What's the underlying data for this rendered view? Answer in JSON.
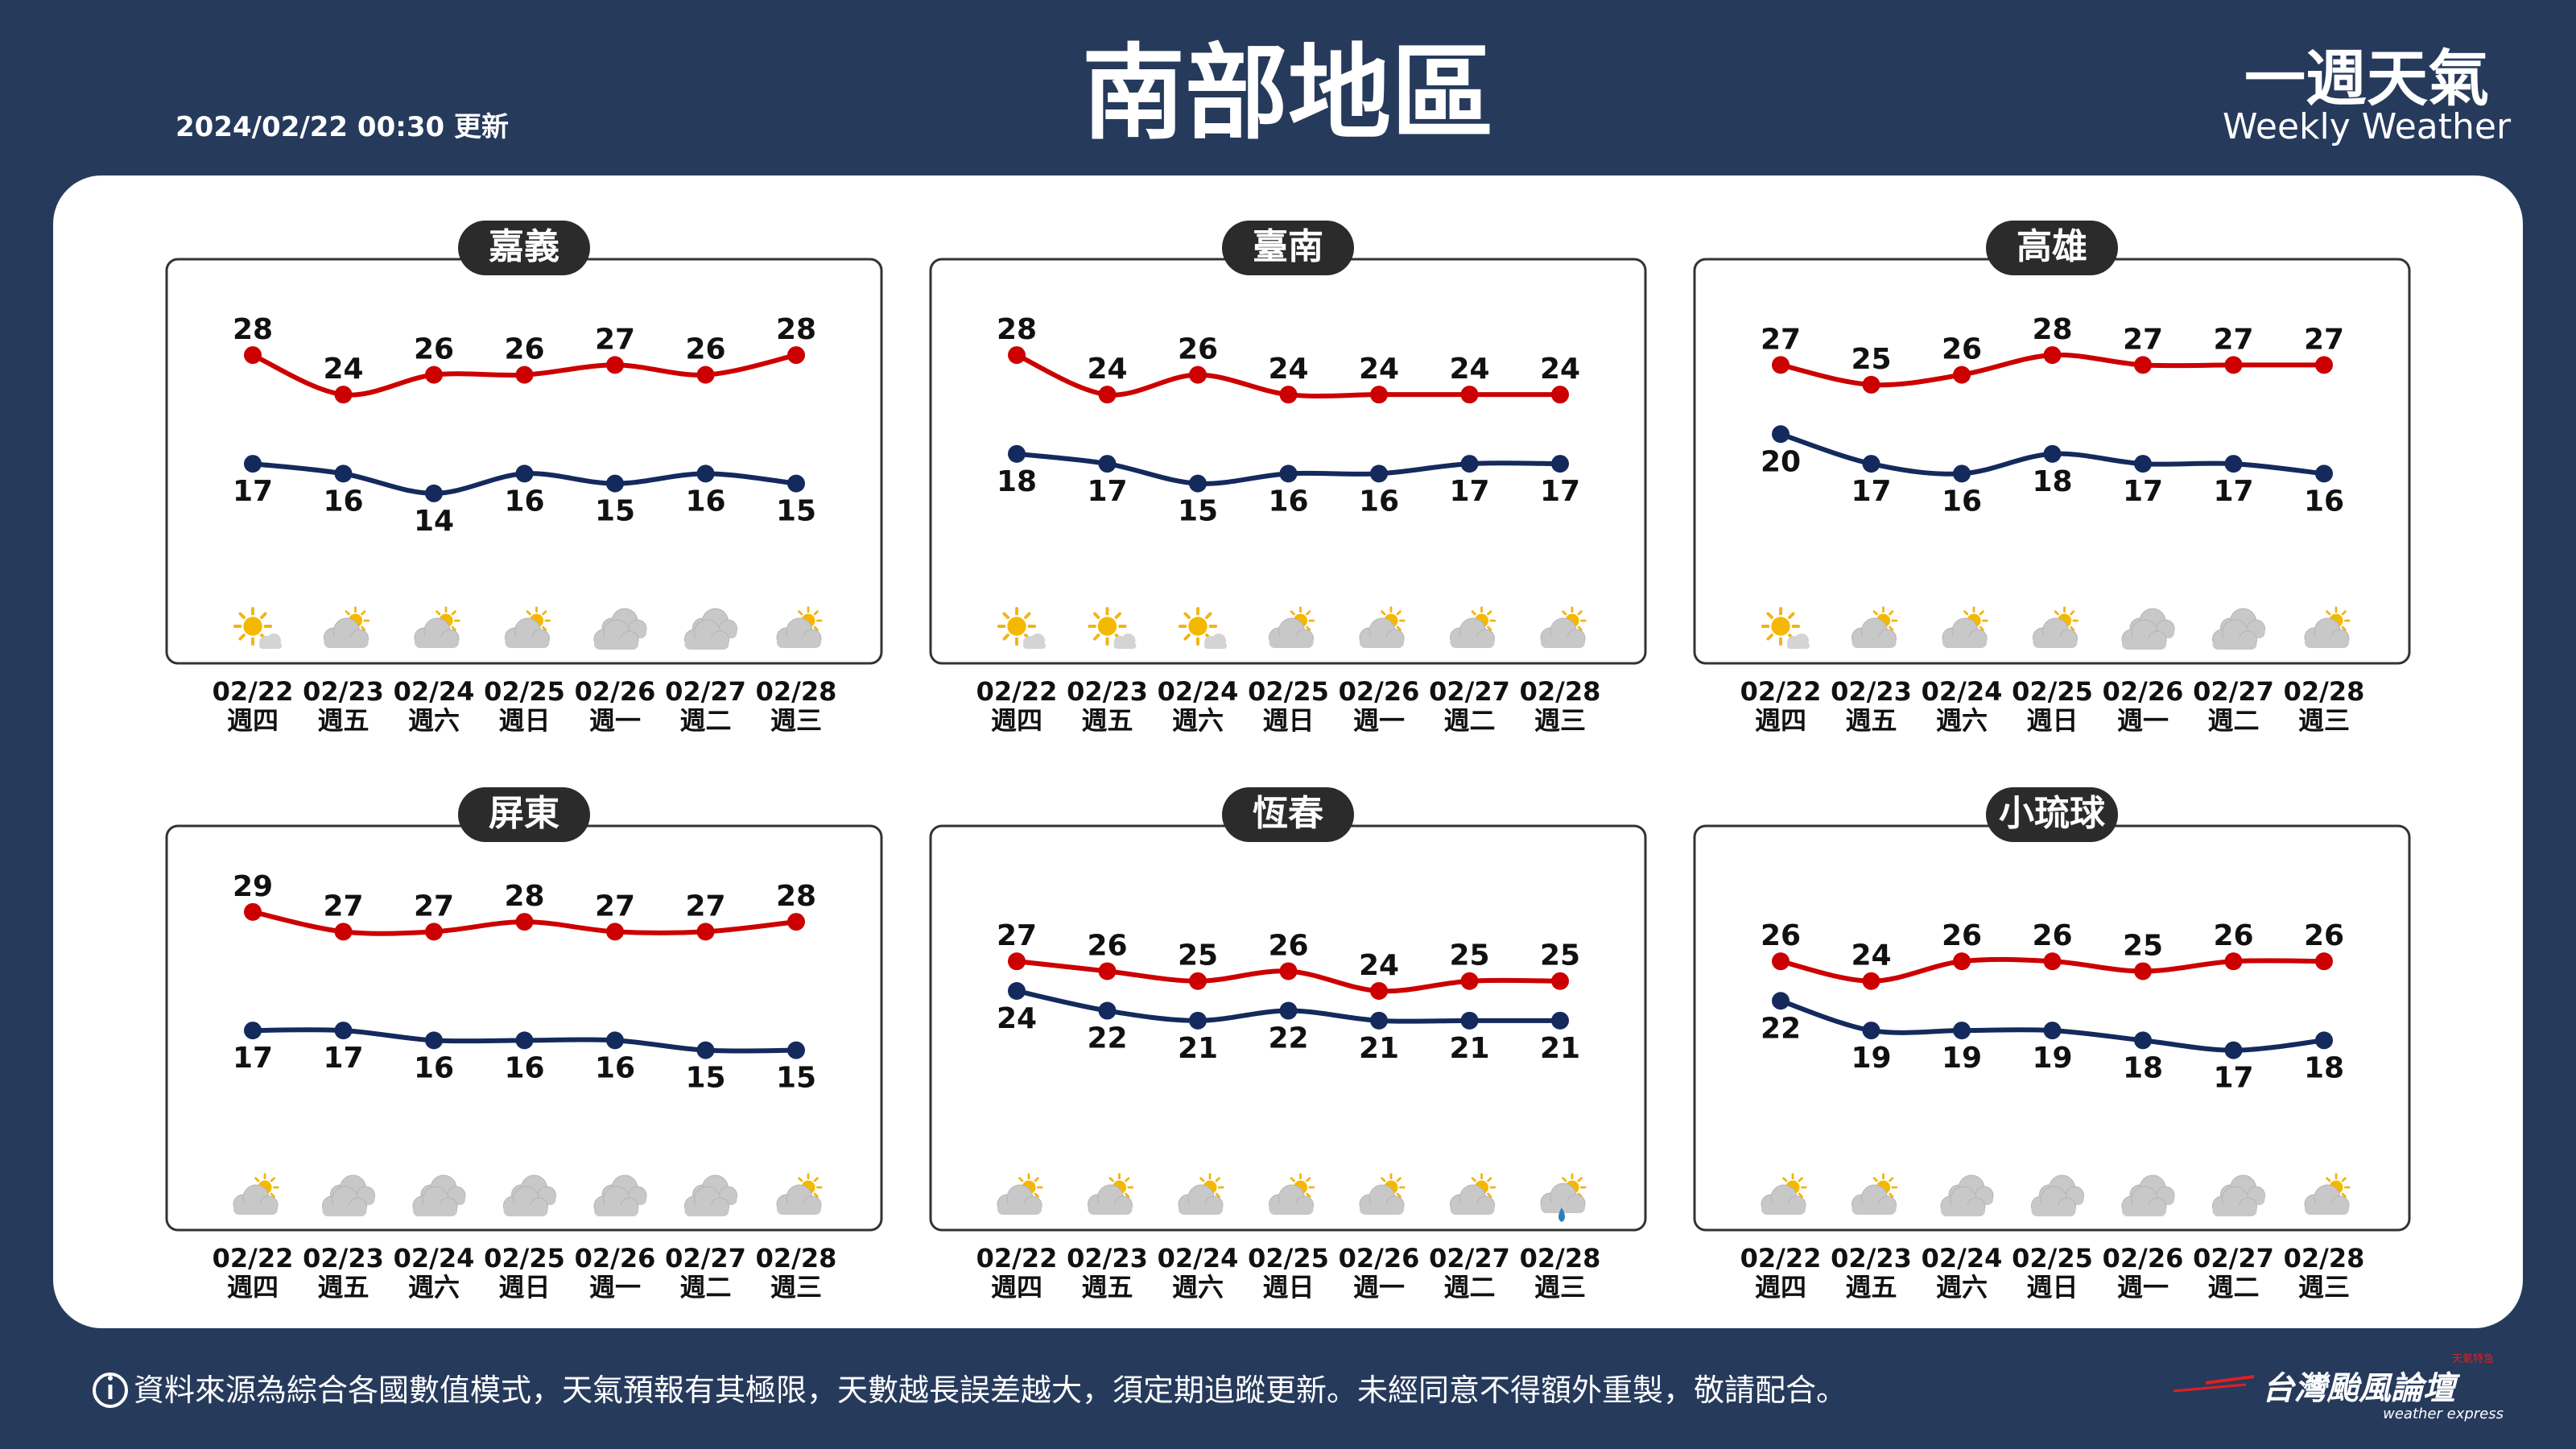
{
  "header": {
    "updated": "2024/02/22 00:30 更新",
    "title": "南部地區",
    "brand_zh": "一週天氣",
    "brand_en": "Weekly Weather"
  },
  "footer": {
    "info_icon": "info-icon",
    "disclaimer": "資料來源為綜合各國數值模式，天氣預報有其極限，天數越長誤差越大，須定期追蹤更新。未經同意不得額外重製，敬請配合。",
    "logo_text": "台灣颱風論壇",
    "logo_sub": "weather express",
    "logo_tag": "天氣特急"
  },
  "colors": {
    "background": "#263a5c",
    "high_line": "#cc0000",
    "low_line": "#142a5c",
    "label_bg": "#2b2b2b"
  },
  "chart_data": [
    {
      "type": "line",
      "title": "嘉義",
      "x": [
        "02/22",
        "02/23",
        "02/24",
        "02/25",
        "02/26",
        "02/27",
        "02/28"
      ],
      "weekdays": [
        "週四",
        "週五",
        "週六",
        "週日",
        "週一",
        "週二",
        "週三"
      ],
      "series": [
        {
          "values": [
            28,
            24,
            26,
            26,
            27,
            26,
            28
          ],
          "color": "#cc0000"
        },
        {
          "values": [
            17,
            16,
            14,
            16,
            15,
            16,
            15
          ],
          "color": "#142a5c"
        }
      ],
      "weather_icons": [
        "sunny-cloudy-icon",
        "partly-cloudy-icon",
        "partly-cloudy-icon",
        "partly-cloudy-icon",
        "cloudy-icon",
        "cloudy-icon",
        "partly-cloudy-icon"
      ],
      "ylim": [
        10,
        32
      ]
    },
    {
      "type": "line",
      "title": "臺南",
      "x": [
        "02/22",
        "02/23",
        "02/24",
        "02/25",
        "02/26",
        "02/27",
        "02/28"
      ],
      "weekdays": [
        "週四",
        "週五",
        "週六",
        "週日",
        "週一",
        "週二",
        "週三"
      ],
      "series": [
        {
          "values": [
            28,
            24,
            26,
            24,
            24,
            24,
            24
          ],
          "color": "#cc0000"
        },
        {
          "values": [
            18,
            17,
            15,
            16,
            16,
            17,
            17
          ],
          "color": "#142a5c"
        }
      ],
      "weather_icons": [
        "sunny-cloudy-icon",
        "sunny-cloudy-icon",
        "sunny-cloudy-icon",
        "partly-cloudy-icon",
        "partly-cloudy-icon",
        "partly-cloudy-icon",
        "partly-cloudy-icon"
      ],
      "ylim": [
        10,
        32
      ]
    },
    {
      "type": "line",
      "title": "高雄",
      "x": [
        "02/22",
        "02/23",
        "02/24",
        "02/25",
        "02/26",
        "02/27",
        "02/28"
      ],
      "weekdays": [
        "週四",
        "週五",
        "週六",
        "週日",
        "週一",
        "週二",
        "週三"
      ],
      "series": [
        {
          "values": [
            27,
            25,
            26,
            28,
            27,
            27,
            27
          ],
          "color": "#cc0000"
        },
        {
          "values": [
            20,
            17,
            16,
            18,
            17,
            17,
            16
          ],
          "color": "#142a5c"
        }
      ],
      "weather_icons": [
        "sunny-cloudy-icon",
        "partly-cloudy-icon",
        "partly-cloudy-icon",
        "partly-cloudy-icon",
        "cloudy-icon",
        "cloudy-icon",
        "partly-cloudy-icon"
      ],
      "ylim": [
        10,
        32
      ]
    },
    {
      "type": "line",
      "title": "屏東",
      "x": [
        "02/22",
        "02/23",
        "02/24",
        "02/25",
        "02/26",
        "02/27",
        "02/28"
      ],
      "weekdays": [
        "週四",
        "週五",
        "週六",
        "週日",
        "週一",
        "週二",
        "週三"
      ],
      "series": [
        {
          "values": [
            29,
            27,
            27,
            28,
            27,
            27,
            28
          ],
          "color": "#cc0000"
        },
        {
          "values": [
            17,
            17,
            16,
            16,
            16,
            15,
            15
          ],
          "color": "#142a5c"
        }
      ],
      "weather_icons": [
        "partly-cloudy-icon",
        "cloudy-icon",
        "cloudy-icon",
        "cloudy-icon",
        "cloudy-icon",
        "cloudy-icon",
        "partly-cloudy-icon"
      ],
      "ylim": [
        10,
        32
      ]
    },
    {
      "type": "line",
      "title": "恆春",
      "x": [
        "02/22",
        "02/23",
        "02/24",
        "02/25",
        "02/26",
        "02/27",
        "02/28"
      ],
      "weekdays": [
        "週四",
        "週五",
        "週六",
        "週日",
        "週一",
        "週二",
        "週三"
      ],
      "series": [
        {
          "values": [
            27,
            26,
            25,
            26,
            24,
            25,
            25
          ],
          "color": "#cc0000"
        },
        {
          "values": [
            24,
            22,
            21,
            22,
            21,
            21,
            21
          ],
          "color": "#142a5c"
        }
      ],
      "weather_icons": [
        "partly-cloudy-icon",
        "partly-cloudy-icon",
        "partly-cloudy-icon",
        "partly-cloudy-icon",
        "partly-cloudy-icon",
        "partly-cloudy-icon",
        "showers-icon"
      ],
      "ylim": [
        13,
        35
      ]
    },
    {
      "type": "line",
      "title": "小琉球",
      "x": [
        "02/22",
        "02/23",
        "02/24",
        "02/25",
        "02/26",
        "02/27",
        "02/28"
      ],
      "weekdays": [
        "週四",
        "週五",
        "週六",
        "週日",
        "週一",
        "週二",
        "週三"
      ],
      "series": [
        {
          "values": [
            26,
            24,
            26,
            26,
            25,
            26,
            26
          ],
          "color": "#cc0000"
        },
        {
          "values": [
            22,
            19,
            19,
            19,
            18,
            17,
            18
          ],
          "color": "#142a5c"
        }
      ],
      "weather_icons": [
        "partly-cloudy-icon",
        "partly-cloudy-icon",
        "cloudy-icon",
        "cloudy-icon",
        "cloudy-icon",
        "cloudy-icon",
        "partly-cloudy-icon"
      ],
      "ylim": [
        12,
        34
      ]
    }
  ]
}
